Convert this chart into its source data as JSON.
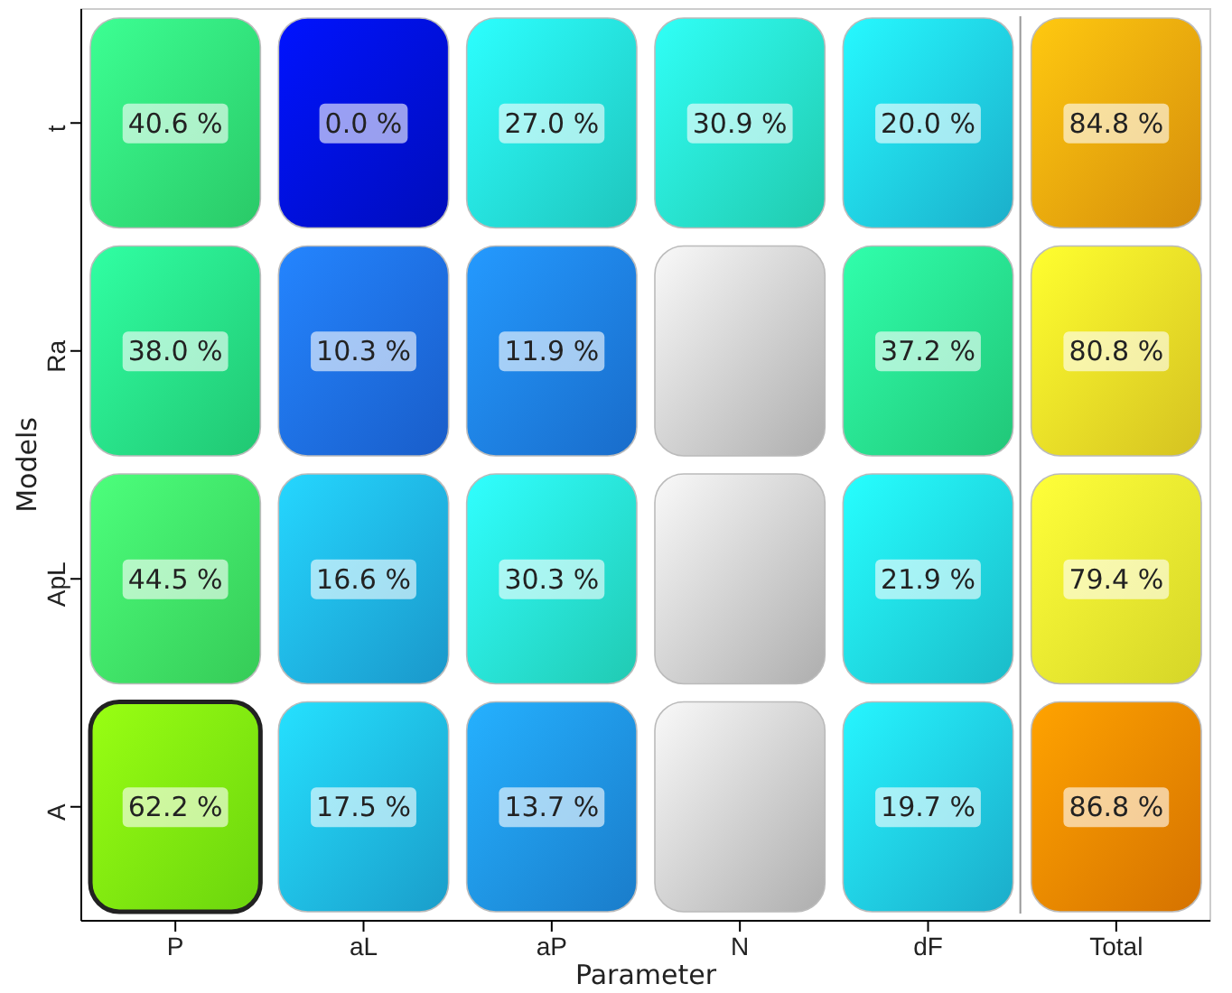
{
  "chart_data": {
    "type": "heatmap",
    "xlabel": "Parameter",
    "ylabel": "Models",
    "categories": [
      "P",
      "aL",
      "aP",
      "N",
      "dF",
      "Total"
    ],
    "y_categories": [
      "t",
      "Ra",
      "ApL",
      "A"
    ],
    "cells": [
      [
        40.6,
        0.0,
        27.0,
        30.9,
        20.0,
        84.8
      ],
      [
        38.0,
        10.3,
        11.9,
        null,
        37.2,
        80.8
      ],
      [
        44.5,
        16.6,
        30.3,
        null,
        21.9,
        79.4
      ],
      [
        62.2,
        17.5,
        13.7,
        null,
        19.7,
        86.8
      ]
    ],
    "cell_labels": [
      [
        "40.6 %",
        "0.0 %",
        "27.0 %",
        "30.9 %",
        "20.0 %",
        "84.8 %"
      ],
      [
        "38.0 %",
        "10.3 %",
        "11.9 %",
        null,
        "37.2 %",
        "80.8 %"
      ],
      [
        "44.5 %",
        "16.6 %",
        "30.3 %",
        null,
        "21.9 %",
        "79.4 %"
      ],
      [
        "62.2 %",
        "17.5 %",
        "13.7 %",
        null,
        "19.7 %",
        "86.8 %"
      ]
    ]
  }
}
